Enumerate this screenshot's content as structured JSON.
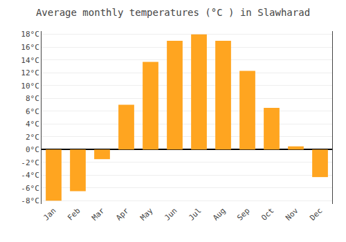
{
  "chart_data": {
    "type": "bar",
    "title": "Average monthly temperatures (°C ) in Slawharad",
    "categories": [
      "Jan",
      "Feb",
      "Mar",
      "Apr",
      "May",
      "Jun",
      "Jul",
      "Aug",
      "Sep",
      "Oct",
      "Nov",
      "Dec"
    ],
    "values": [
      -8,
      -6.5,
      -1.5,
      7,
      13.7,
      17,
      18,
      17,
      12.3,
      6.5,
      0.5,
      -4.3
    ],
    "color": "#FFA520",
    "ylim": [
      -8.5,
      18.5
    ],
    "yticks": [
      {
        "value": -8,
        "label": "-8°C"
      },
      {
        "value": -6,
        "label": "-6°C"
      },
      {
        "value": -4,
        "label": "-4°C"
      },
      {
        "value": -2,
        "label": "-2°C"
      },
      {
        "value": 0,
        "label": "0°C"
      },
      {
        "value": 2,
        "label": "2°C"
      },
      {
        "value": 4,
        "label": "4°C"
      },
      {
        "value": 6,
        "label": "6°C"
      },
      {
        "value": 8,
        "label": "8°C"
      },
      {
        "value": 10,
        "label": "10°C"
      },
      {
        "value": 12,
        "label": "12°C"
      },
      {
        "value": 14,
        "label": "14°C"
      },
      {
        "value": 16,
        "label": "16°C"
      },
      {
        "value": 18,
        "label": "18°C"
      }
    ],
    "grid": true
  }
}
